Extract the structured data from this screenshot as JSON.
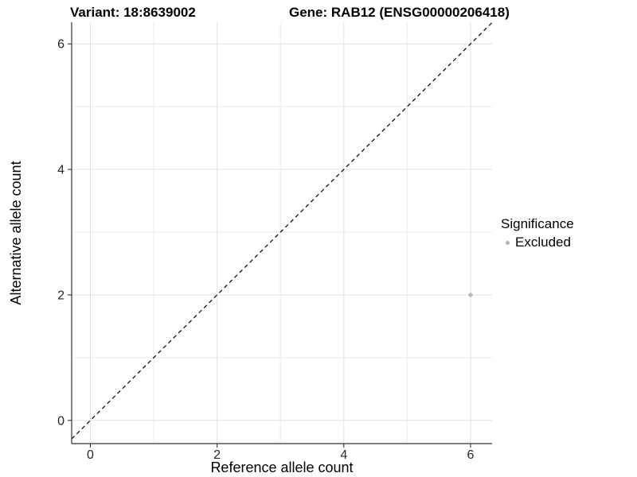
{
  "chart_data": {
    "type": "scatter",
    "title_left": "Variant: 18:8639002",
    "title_right": "Gene: RAB12 (ENSG00000206418)",
    "xlabel": "Reference allele count",
    "ylabel": "Alternative allele count",
    "xlim": [
      -0.295,
      6.34
    ],
    "ylim": [
      -0.37,
      6.345
    ],
    "xticks": [
      0,
      2,
      4,
      6
    ],
    "yticks": [
      0,
      2,
      4,
      6
    ],
    "xticks_minor": [
      1,
      3,
      5
    ],
    "yticks_minor": [
      1,
      3,
      5
    ],
    "grid": "major+minor",
    "identity_line": {
      "type": "abline",
      "slope": 1,
      "intercept": 0,
      "style": "dashed",
      "color": "#000000"
    },
    "series": [
      {
        "name": "Excluded",
        "color": "#b5b5b5",
        "points": [
          {
            "x": 6,
            "y": 2
          }
        ]
      }
    ],
    "legend": {
      "title": "Significance",
      "position": "right",
      "entries": [
        {
          "label": "Excluded",
          "color": "#b5b5b5"
        }
      ]
    }
  },
  "colors": {
    "background": "#ffffff",
    "grid_major": "#e2e2e2",
    "grid_minor": "#ebebeb",
    "axis_line": "#333333",
    "tick_label": "#262626",
    "dashed_line": "#000000"
  }
}
